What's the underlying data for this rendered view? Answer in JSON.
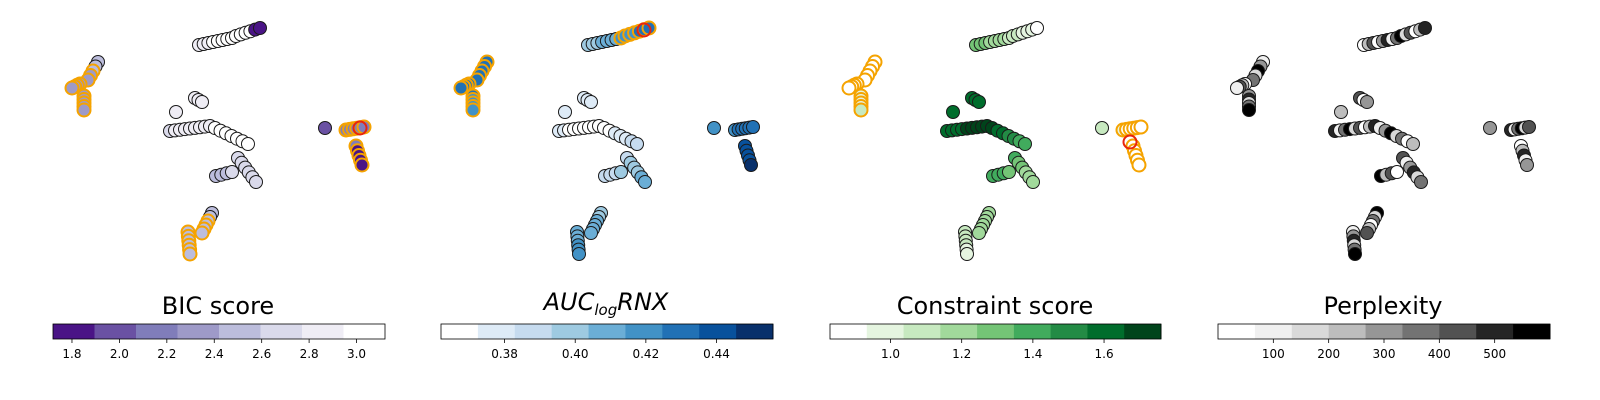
{
  "chart_data": [
    {
      "type": "scatter",
      "title": "BIC score",
      "cmap": [
        "#4a1486",
        "#6a51a3",
        "#807dba",
        "#9e9ac8",
        "#bcbddc",
        "#dadaeb",
        "#efedf5",
        "#ffffff"
      ],
      "range": [
        1.72,
        3.12
      ],
      "ticks": [
        1.8,
        2.0,
        2.2,
        2.4,
        2.6,
        2.8,
        3.0
      ],
      "tick_labels": [
        "1.8",
        "2.0",
        "2.2",
        "2.4",
        "2.6",
        "2.8",
        "3.0"
      ]
    },
    {
      "type": "scatter",
      "title": "",
      "title_parts": {
        "main": "AUC",
        "sub": "log",
        "tail": "RNX"
      },
      "cmap": [
        "#ffffff",
        "#deebf7",
        "#c6dbef",
        "#9ecae1",
        "#6baed6",
        "#4292c6",
        "#2171b5",
        "#08519c",
        "#08306b"
      ],
      "range": [
        0.362,
        0.456
      ],
      "ticks": [
        0.38,
        0.4,
        0.42,
        0.44
      ],
      "tick_labels": [
        "0.38",
        "0.40",
        "0.42",
        "0.44"
      ]
    },
    {
      "type": "scatter",
      "title": "Constraint score",
      "cmap": [
        "#ffffff",
        "#e5f5e0",
        "#c7e9c0",
        "#a1d99b",
        "#74c476",
        "#41ab5d",
        "#238b45",
        "#006d2c",
        "#00441b"
      ],
      "range": [
        0.83,
        1.76
      ],
      "ticks": [
        1.0,
        1.2,
        1.4,
        1.6
      ],
      "tick_labels": [
        "1.0",
        "1.2",
        "1.4",
        "1.6"
      ]
    },
    {
      "type": "scatter",
      "title": "Perplexity",
      "cmap": [
        "#ffffff",
        "#f0f0f0",
        "#d9d9d9",
        "#bdbdbd",
        "#969696",
        "#737373",
        "#525252",
        "#252525",
        "#000000"
      ],
      "range": [
        0,
        600
      ],
      "ticks": [
        100,
        200,
        300,
        400,
        500
      ],
      "tick_labels": [
        "100",
        "200",
        "300",
        "400",
        "500"
      ]
    }
  ],
  "colors": {
    "highlight_ring": "#f5a300",
    "best_marker": "#e8240c",
    "marker_edge": "#1a1a1a"
  }
}
